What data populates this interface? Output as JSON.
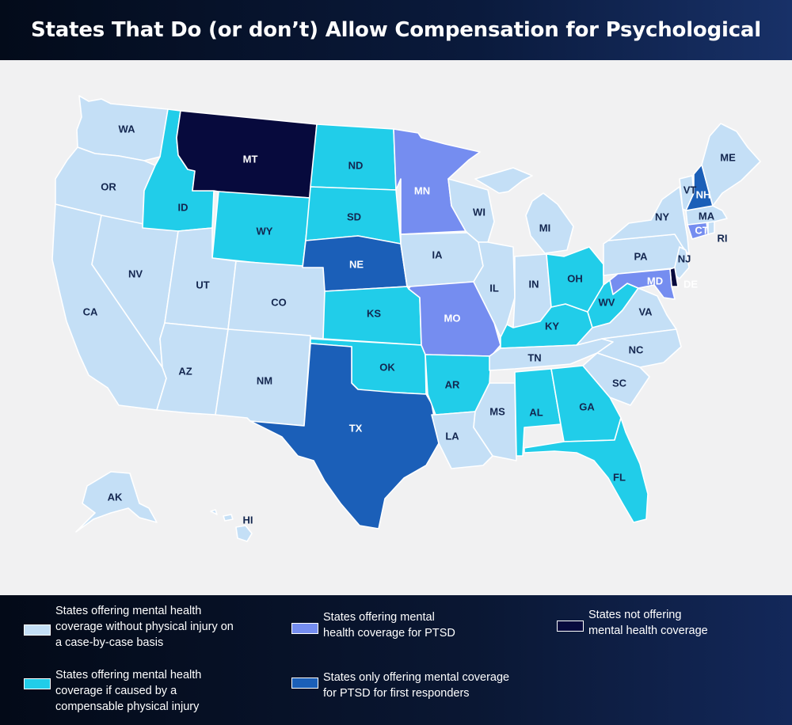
{
  "title": "States That Do (or don’t) Allow Compensation for Psychological Injuries",
  "colors": {
    "case_by_case": "#c4dff6",
    "physical_injury": "#21cde9",
    "ptsd": "#758df0",
    "first_responders": "#1b5fb8",
    "none": "#070a3d",
    "background": "#f1f1f2",
    "header": "#0a1a3c"
  },
  "legend": [
    {
      "category": "case_by_case",
      "label": "States offering mental health\ncoverage without physical injury on\na case-by-case basis"
    },
    {
      "category": "ptsd",
      "label": "States offering mental\nhealth coverage for PTSD"
    },
    {
      "category": "none",
      "label": "States not offering\nmental health coverage"
    },
    {
      "category": "physical_injury",
      "label": "States offering mental health\ncoverage if caused by a\ncompensable physical injury"
    },
    {
      "category": "first_responders",
      "label": "States only offering mental coverage\nfor PTSD for first responders"
    }
  ],
  "states": [
    {
      "abbr": "WA",
      "category": "case_by_case"
    },
    {
      "abbr": "OR",
      "category": "case_by_case"
    },
    {
      "abbr": "CA",
      "category": "case_by_case"
    },
    {
      "abbr": "NV",
      "category": "case_by_case"
    },
    {
      "abbr": "ID",
      "category": "physical_injury"
    },
    {
      "abbr": "MT",
      "category": "none"
    },
    {
      "abbr": "WY",
      "category": "physical_injury"
    },
    {
      "abbr": "UT",
      "category": "case_by_case"
    },
    {
      "abbr": "AZ",
      "category": "case_by_case"
    },
    {
      "abbr": "CO",
      "category": "case_by_case"
    },
    {
      "abbr": "NM",
      "category": "case_by_case"
    },
    {
      "abbr": "ND",
      "category": "physical_injury"
    },
    {
      "abbr": "SD",
      "category": "physical_injury"
    },
    {
      "abbr": "NE",
      "category": "first_responders"
    },
    {
      "abbr": "KS",
      "category": "physical_injury"
    },
    {
      "abbr": "OK",
      "category": "physical_injury"
    },
    {
      "abbr": "TX",
      "category": "first_responders"
    },
    {
      "abbr": "MN",
      "category": "ptsd"
    },
    {
      "abbr": "IA",
      "category": "case_by_case"
    },
    {
      "abbr": "MO",
      "category": "ptsd"
    },
    {
      "abbr": "AR",
      "category": "physical_injury"
    },
    {
      "abbr": "LA",
      "category": "case_by_case"
    },
    {
      "abbr": "WI",
      "category": "case_by_case"
    },
    {
      "abbr": "IL",
      "category": "case_by_case"
    },
    {
      "abbr": "MS",
      "category": "case_by_case"
    },
    {
      "abbr": "MI",
      "category": "case_by_case"
    },
    {
      "abbr": "IN",
      "category": "case_by_case"
    },
    {
      "abbr": "KY",
      "category": "physical_injury"
    },
    {
      "abbr": "TN",
      "category": "case_by_case"
    },
    {
      "abbr": "AL",
      "category": "physical_injury"
    },
    {
      "abbr": "GA",
      "category": "physical_injury"
    },
    {
      "abbr": "FL",
      "category": "physical_injury"
    },
    {
      "abbr": "OH",
      "category": "physical_injury"
    },
    {
      "abbr": "WV",
      "category": "physical_injury"
    },
    {
      "abbr": "VA",
      "category": "case_by_case"
    },
    {
      "abbr": "NC",
      "category": "case_by_case"
    },
    {
      "abbr": "SC",
      "category": "case_by_case"
    },
    {
      "abbr": "PA",
      "category": "case_by_case"
    },
    {
      "abbr": "NY",
      "category": "case_by_case"
    },
    {
      "abbr": "NJ",
      "category": "case_by_case"
    },
    {
      "abbr": "DE",
      "category": "none"
    },
    {
      "abbr": "MD",
      "category": "ptsd"
    },
    {
      "abbr": "CT",
      "category": "ptsd"
    },
    {
      "abbr": "RI",
      "category": "case_by_case"
    },
    {
      "abbr": "MA",
      "category": "case_by_case"
    },
    {
      "abbr": "VT",
      "category": "case_by_case"
    },
    {
      "abbr": "NH",
      "category": "first_responders"
    },
    {
      "abbr": "ME",
      "category": "case_by_case"
    },
    {
      "abbr": "AK",
      "category": "case_by_case"
    },
    {
      "abbr": "HI",
      "category": "case_by_case"
    }
  ]
}
